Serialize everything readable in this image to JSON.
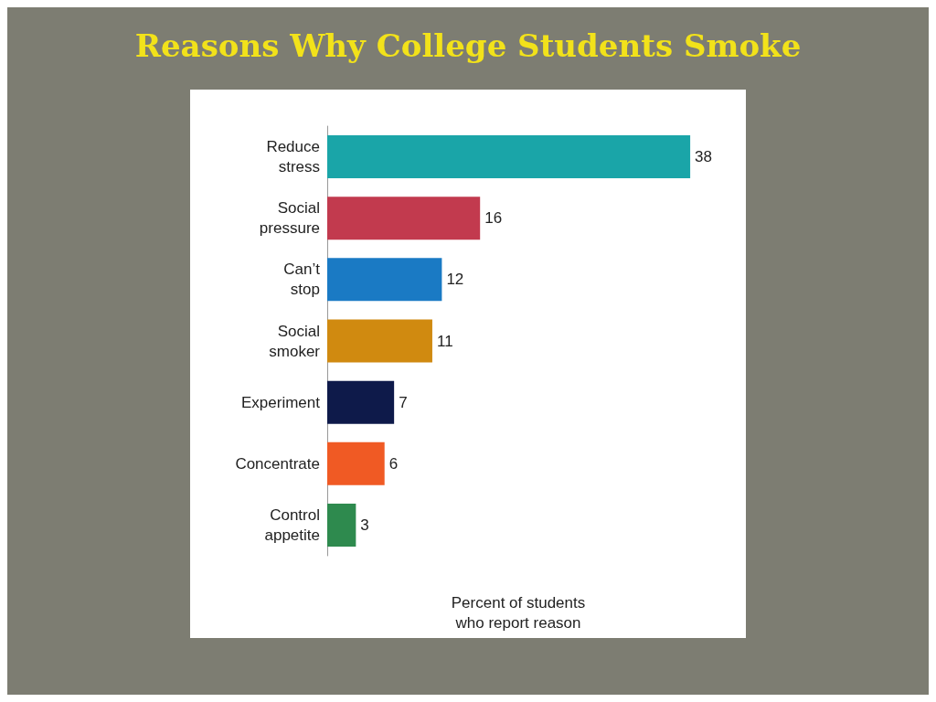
{
  "chart_data": {
    "type": "bar",
    "orientation": "horizontal",
    "title": "Reasons Why College Students Smoke",
    "categories": [
      "Reduce\nstress",
      "Social\npressure",
      "Can’t\nstop",
      "Social\nsmoker",
      "Experiment",
      "Concentrate",
      "Control\nappetite"
    ],
    "values": [
      38,
      16,
      12,
      11,
      7,
      6,
      3
    ],
    "colors": [
      "#1aa5a8",
      "#c23a4e",
      "#1a7ac4",
      "#d08a10",
      "#0e1a4a",
      "#f05a24",
      "#2e8a4e"
    ],
    "xlabel": "Percent of students\nwho report reason",
    "data_labels": true,
    "grid": false
  }
}
